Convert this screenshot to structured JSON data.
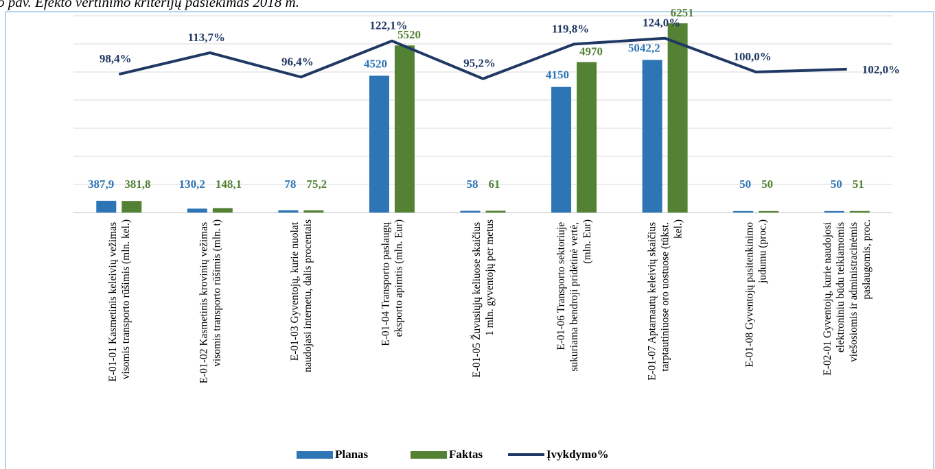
{
  "chart_data": {
    "type": "bar_line",
    "title": "o pav. Efekto vertinimo kriterijų pasiekimas 2018 m.",
    "categories": [
      "E-01-01 Kasmetinis keleivių vežimas\nvisomis transporto rūšimis (mln. kel.)",
      "E-01-02 Kasmetinis krovinių vežimas\nvisomis transporto rūšimis (mln. t)",
      "E-01-03 Gyventojų, kurie nuolat\nnaudojasi internetu, dalis procentais",
      "E-01-04 Transporto paslaugų\neksporto apimtis (mln. Eur)",
      "E-01-05 Žuvusiųjų keliuose skaičius\n1 mln. gyventojų per metus",
      "E-01-06 Transporto sektoriuje\nsukuriama bendroji pridėtinė vertė,\n(mln. Eur)",
      "E-01-07 Aptarnautų keleivių skaičius\ntarptautiniuose oro uostuose (tūkst.\nkel.)",
      "E-01-08 Gyventojų pasitenkinimo\njudumu (proc.)",
      "E-02-01 Gyventojų, kurie naudojosi\nelektroniniu būdu teikiamomis\nviešosiomis ir administracinėmis\npaslaugomis, proc."
    ],
    "series": [
      {
        "name": "Planas",
        "color": "#2e75b6",
        "kind": "bar",
        "values": [
          387.9,
          130.2,
          78,
          4520,
          58,
          4150,
          5042.2,
          50,
          50
        ],
        "value_labels": [
          "387,9",
          "130,2",
          "78",
          "4520",
          "58",
          "4150",
          "5042,2",
          "50",
          "50"
        ]
      },
      {
        "name": "Faktas",
        "color": "#548235",
        "kind": "bar",
        "values": [
          381.8,
          148.1,
          75.2,
          5520,
          61,
          4970,
          6251,
          50,
          51
        ],
        "value_labels": [
          "381,8",
          "148,1",
          "75,2",
          "5520",
          "61",
          "4970",
          "6251",
          "50",
          "51"
        ]
      },
      {
        "name": "Įvykdymo%",
        "color": "#1f3864",
        "kind": "line",
        "axis": "y2",
        "values": [
          98.4,
          113.7,
          96.4,
          122.1,
          95.2,
          119.8,
          124.0,
          100.0,
          102.0
        ],
        "value_labels": [
          "98,4%",
          "113,7%",
          "96,4%",
          "122,1%",
          "95,2%",
          "119,8%",
          "124,0%",
          "100,0%",
          "102,0%"
        ]
      }
    ],
    "ylim": [
      0,
      6500
    ],
    "y2lim": [
      0,
      140
    ],
    "y2ticks": [
      0,
      20,
      40,
      60,
      80,
      100,
      120,
      140
    ],
    "grid": true,
    "legend": "bottom"
  }
}
